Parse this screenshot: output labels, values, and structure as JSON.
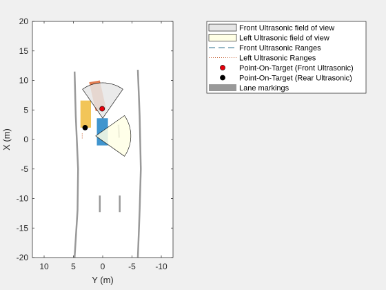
{
  "chart_data": {
    "type": "scatter",
    "title": "",
    "xlabel": "Y (m)",
    "ylabel": "X (m)",
    "xlim": [
      12,
      -12
    ],
    "ylim": [
      -20,
      20
    ],
    "x_direction": "reversed",
    "xticks": [
      10,
      5,
      0,
      -5,
      -10
    ],
    "yticks": [
      20,
      15,
      10,
      5,
      0,
      -5,
      -10,
      -15,
      -20
    ],
    "grid": false,
    "legend_position": "outside-top-right",
    "legend": [
      {
        "label": "Front Ultrasonic field of view",
        "symbol": "patch",
        "color": "#e6e6e6"
      },
      {
        "label": "Left Ultrasonic field of view",
        "symbol": "patch",
        "color": "#ffffe5"
      },
      {
        "label": "Front Ultrasonic Ranges",
        "symbol": "dashed-line",
        "color": "#2b6f8e"
      },
      {
        "label": "Left Ultrasonic Ranges",
        "symbol": "dotted-line",
        "color": "#c05020"
      },
      {
        "label": "Point-On-Target (Front Ultrasonic)",
        "symbol": "marker",
        "color": "#e8000b"
      },
      {
        "label": "Point-On-Target (Rear Ultrasonic)",
        "symbol": "marker",
        "color": "#000000"
      },
      {
        "label": "Lane markings",
        "symbol": "thick-line",
        "color": "#999999"
      }
    ],
    "lane_markings": [
      {
        "name": "left-outer",
        "points": [
          [
            4.8,
            11.5
          ],
          [
            4.6,
            4
          ],
          [
            4.2,
            -5
          ],
          [
            4.3,
            -12
          ],
          [
            4.8,
            -20
          ]
        ]
      },
      {
        "name": "right-outer",
        "points": [
          [
            -6.0,
            11.8
          ],
          [
            -6.3,
            4
          ],
          [
            -6.5,
            -5
          ],
          [
            -6.3,
            -12
          ],
          [
            -6.0,
            -20
          ]
        ]
      },
      {
        "name": "center-dash-1",
        "points": [
          [
            -2.7,
            2.5
          ],
          [
            -2.8,
            0.3
          ]
        ]
      },
      {
        "name": "center-dash-2",
        "points": [
          [
            0.5,
            -9.5
          ],
          [
            0.5,
            -12.3
          ]
        ]
      },
      {
        "name": "center-dash-3",
        "points": [
          [
            -2.9,
            -9.5
          ],
          [
            -2.9,
            -12.3
          ]
        ]
      }
    ],
    "vehicles": [
      {
        "name": "ego-vehicle",
        "color": "#0072bd",
        "corners": [
          [
            1.0,
            3.6
          ],
          [
            -0.9,
            3.6
          ],
          [
            -0.9,
            -1.0
          ],
          [
            1.0,
            -1.0
          ]
        ]
      },
      {
        "name": "left-vehicle",
        "color": "#edb120",
        "corners": [
          [
            3.8,
            6.6
          ],
          [
            2.0,
            6.6
          ],
          [
            2.0,
            2.0
          ],
          [
            3.8,
            2.0
          ]
        ]
      },
      {
        "name": "front-vehicle",
        "color": "#d95319",
        "corners": [
          [
            2.3,
            9.7
          ],
          [
            0.5,
            10.0
          ],
          [
            -0.6,
            5.1
          ],
          [
            1.2,
            4.8
          ]
        ]
      }
    ],
    "sensor_fov": [
      {
        "name": "front-ultrasonic-fov",
        "color": "#e6e6e6",
        "origin": [
          0.0,
          3.6
        ],
        "range": 6.0,
        "angle_start_deg": 55,
        "angle_end_deg": 125
      },
      {
        "name": "left-ultrasonic-fov",
        "color": "#ffffe5",
        "origin": [
          1.2,
          0.6
        ],
        "range": 6.0,
        "angle_start_deg": 145,
        "angle_end_deg": 215
      }
    ],
    "points_on_target": [
      {
        "name": "front-ultrasonic-point",
        "color": "#e8000b",
        "x": 0.1,
        "y": 5.2
      },
      {
        "name": "rear-ultrasonic-point",
        "color": "#000000",
        "x": 3.0,
        "y": 2.0
      }
    ],
    "range_lines": [
      {
        "name": "left-ultrasonic-range",
        "points": [
          [
            3.5,
            1.0
          ],
          [
            3.5,
            0.0
          ]
        ]
      }
    ]
  }
}
